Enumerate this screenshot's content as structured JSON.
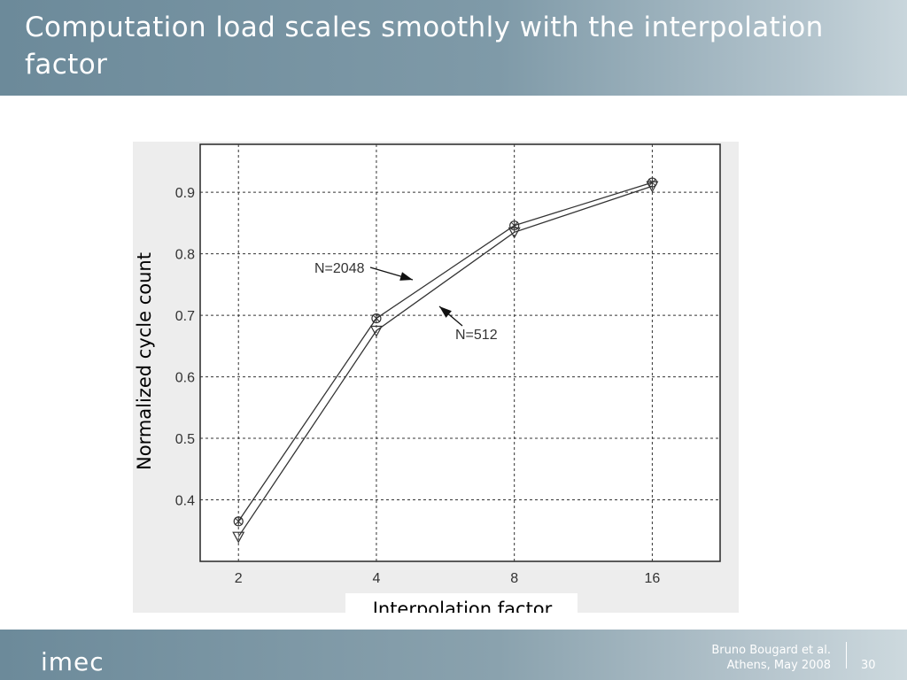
{
  "slide": {
    "title": "Computation load scales smoothly with the interpolation factor"
  },
  "footer": {
    "logo_text": "imec",
    "author": "Bruno Bougard et al.",
    "venue_date": "Athens, May 2008",
    "page_number": "30"
  },
  "chart_data": {
    "type": "line",
    "title": "",
    "xlabel": "Interpolation factor",
    "ylabel": "Normalized cycle count",
    "x_scale": "log2",
    "categories": [
      "2",
      "4",
      "8",
      "16"
    ],
    "x": [
      2,
      4,
      8,
      16
    ],
    "xlim": [
      1.65,
      22.5
    ],
    "ylim": [
      0.3,
      0.978
    ],
    "yticks": [
      0.4,
      0.5,
      0.6,
      0.7,
      0.8,
      0.9
    ],
    "ytick_labels": [
      "0.4",
      "0.5",
      "0.6",
      "0.7",
      "0.8",
      "0.9"
    ],
    "grid": true,
    "series": [
      {
        "name": "N=2048",
        "marker": "circle",
        "values": [
          0.365,
          0.695,
          0.846,
          0.916
        ]
      },
      {
        "name": "N=512",
        "marker": "triangle-down",
        "values": [
          0.34,
          0.675,
          0.835,
          0.91
        ]
      }
    ],
    "annotations": [
      {
        "text": "N=2048",
        "series": "N=2048"
      },
      {
        "text": "N=512",
        "series": "N=512"
      }
    ]
  }
}
